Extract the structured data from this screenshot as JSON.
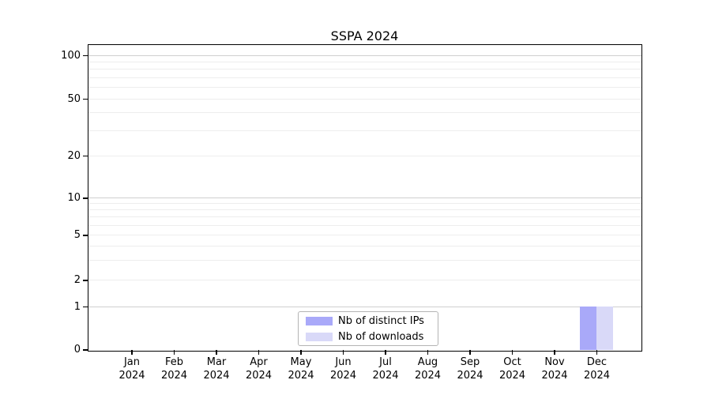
{
  "chart_data": {
    "type": "bar",
    "title": "SSPA 2024",
    "categories": [
      "Jan 2024",
      "Feb 2024",
      "Mar 2024",
      "Apr 2024",
      "May 2024",
      "Jun 2024",
      "Jul 2024",
      "Aug 2024",
      "Sep 2024",
      "Oct 2024",
      "Nov 2024",
      "Dec 2024"
    ],
    "series": [
      {
        "name": "Nb of distinct IPs",
        "color": "#a9a9f9",
        "values": [
          0,
          0,
          0,
          0,
          0,
          0,
          0,
          0,
          0,
          0,
          0,
          1
        ]
      },
      {
        "name": "Nb of downloads",
        "color": "#d9d9f8",
        "values": [
          0,
          0,
          0,
          0,
          0,
          0,
          0,
          0,
          0,
          0,
          0,
          1
        ]
      }
    ],
    "xlabel": "",
    "ylabel": "",
    "yscale": "symlog",
    "yticks": [
      0,
      1,
      2,
      5,
      10,
      20,
      50,
      100
    ],
    "ylim": [
      0,
      117
    ],
    "grid": "horizontal major and minor",
    "legend_position": "lower center",
    "colors": {
      "major_grid": "#cfcfcf",
      "minor_grid": "#ededed",
      "axis": "#000000",
      "background": "#ffffff"
    }
  }
}
